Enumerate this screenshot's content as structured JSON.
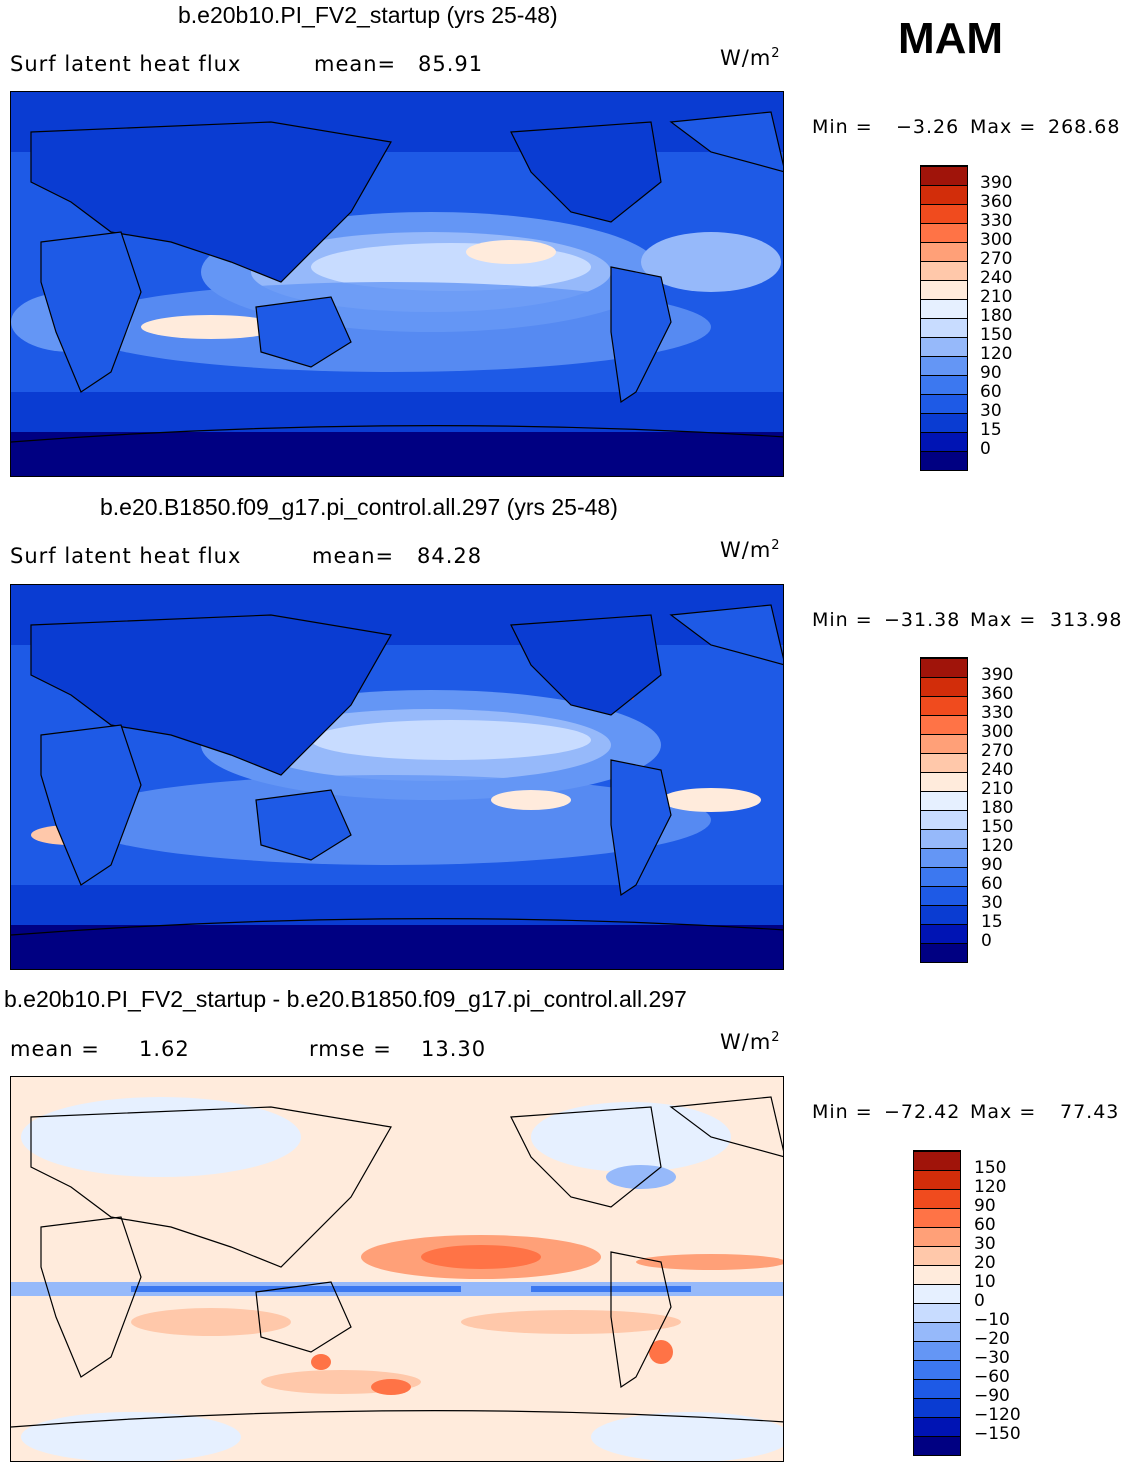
{
  "season": "MAM",
  "colors": {
    "abs_scale": [
      "#000082",
      "#0014b4",
      "#0a3cd2",
      "#1e5ae6",
      "#3c78f0",
      "#6496f5",
      "#96b9fa",
      "#c8dcff",
      "#e6f0ff",
      "#ffebdc",
      "#ffc8aa",
      "#ffa078",
      "#ff7346",
      "#f04b1e",
      "#d22d0a",
      "#a0140a",
      "#780000"
    ],
    "diff_scale": [
      "#000082",
      "#0014b4",
      "#0a3cd2",
      "#1e5ae6",
      "#3c78f0",
      "#6496f5",
      "#96b9fa",
      "#c8dcff",
      "#e6f0ff",
      "#ffebdc",
      "#ffc8aa",
      "#ffa078",
      "#ff7346",
      "#f04b1e",
      "#d22d0a",
      "#a0140a",
      "#780000"
    ]
  },
  "panels": [
    {
      "title": "b.e20b10.PI_FV2_startup (yrs 25-48)",
      "left_label": "Surf latent heat flux",
      "stat_label": "mean=",
      "stat_value": "85.91",
      "units_base": "W/m",
      "units_exp": "2",
      "min_label": "Min =",
      "min_value": "−3.26",
      "max_label": "Max =",
      "max_value": "268.68"
    },
    {
      "title": "b.e20.B1850.f09_g17.pi_control.all.297 (yrs 25-48)",
      "left_label": "Surf latent heat flux",
      "stat_label": "mean=",
      "stat_value": "84.28",
      "units_base": "W/m",
      "units_exp": "2",
      "min_label": "Min =",
      "min_value": "−31.38",
      "max_label": "Max =",
      "max_value": "313.98"
    },
    {
      "title": "b.e20b10.PI_FV2_startup - b.e20.B1850.f09_g17.pi_control.all.297",
      "left_label": "mean =",
      "left_value": "1.62",
      "stat_label": "rmse =",
      "stat_value": "13.30",
      "units_base": "W/m",
      "units_exp": "2",
      "min_label": "Min =",
      "min_value": "−72.42",
      "max_label": "Max =",
      "max_value": "77.43"
    }
  ],
  "chart_data": [
    {
      "type": "heatmap",
      "title": "b.e20b10.PI_FV2_startup (yrs 25-48)",
      "variable": "Surf latent heat flux",
      "units": "W/m2",
      "mean": 85.91,
      "min": -3.26,
      "max": 268.68,
      "colorbar_levels": [
        "390",
        "360",
        "330",
        "300",
        "270",
        "240",
        "210",
        "180",
        "150",
        "120",
        "90",
        "60",
        "30",
        "15",
        "0"
      ]
    },
    {
      "type": "heatmap",
      "title": "b.e20.B1850.f09_g17.pi_control.all.297 (yrs 25-48)",
      "variable": "Surf latent heat flux",
      "units": "W/m2",
      "mean": 84.28,
      "min": -31.38,
      "max": 313.98,
      "colorbar_levels": [
        "390",
        "360",
        "330",
        "300",
        "270",
        "240",
        "210",
        "180",
        "150",
        "120",
        "90",
        "60",
        "30",
        "15",
        "0"
      ]
    },
    {
      "type": "heatmap",
      "title": "b.e20b10.PI_FV2_startup - b.e20.B1850.f09_g17.pi_control.all.297",
      "units": "W/m2",
      "mean": 1.62,
      "rmse": 13.3,
      "min": -72.42,
      "max": 77.43,
      "colorbar_levels": [
        "150",
        "120",
        "90",
        "60",
        "30",
        "20",
        "10",
        "0",
        "−10",
        "−20",
        "−30",
        "−60",
        "−90",
        "−120",
        "−150"
      ]
    }
  ]
}
